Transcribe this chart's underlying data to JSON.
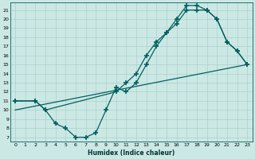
{
  "xlabel": "Humidex (Indice chaleur)",
  "bg_color": "#cce8e4",
  "grid_color": "#aad0cc",
  "line_color": "#006060",
  "marker": "+",
  "linewidth": 0.9,
  "markersize": 4,
  "markeredgewidth": 1.2,
  "xlim": [
    -0.5,
    23.5
  ],
  "ylim": [
    6.5,
    21.8
  ],
  "xticks": [
    0,
    1,
    2,
    3,
    4,
    5,
    6,
    7,
    8,
    9,
    10,
    11,
    12,
    13,
    14,
    15,
    16,
    17,
    18,
    19,
    20,
    21,
    22,
    23
  ],
  "yticks": [
    7,
    8,
    9,
    10,
    11,
    12,
    13,
    14,
    15,
    16,
    17,
    18,
    19,
    20,
    21
  ],
  "line1_x": [
    0,
    2,
    3,
    4,
    5,
    6,
    7,
    8,
    9,
    10,
    11,
    12,
    13,
    14,
    15,
    16,
    17,
    18,
    19,
    20,
    21,
    22,
    23
  ],
  "line1_y": [
    11,
    11,
    10,
    8.5,
    8,
    7,
    7,
    7.5,
    10,
    12.5,
    12,
    13,
    15,
    17,
    18.5,
    19.5,
    21,
    21,
    21,
    20,
    17.5,
    16.5,
    15
  ],
  "line2_x": [
    0,
    2,
    3,
    10,
    11,
    12,
    13,
    14,
    15,
    16,
    17,
    18,
    19,
    20,
    21,
    22,
    23
  ],
  "line2_y": [
    11,
    11,
    10,
    12,
    13,
    14,
    16,
    17.5,
    18.5,
    20,
    21.5,
    21.5,
    21,
    20,
    17.5,
    16.5,
    15
  ],
  "line3_x": [
    0,
    23
  ],
  "line3_y": [
    10,
    15
  ]
}
